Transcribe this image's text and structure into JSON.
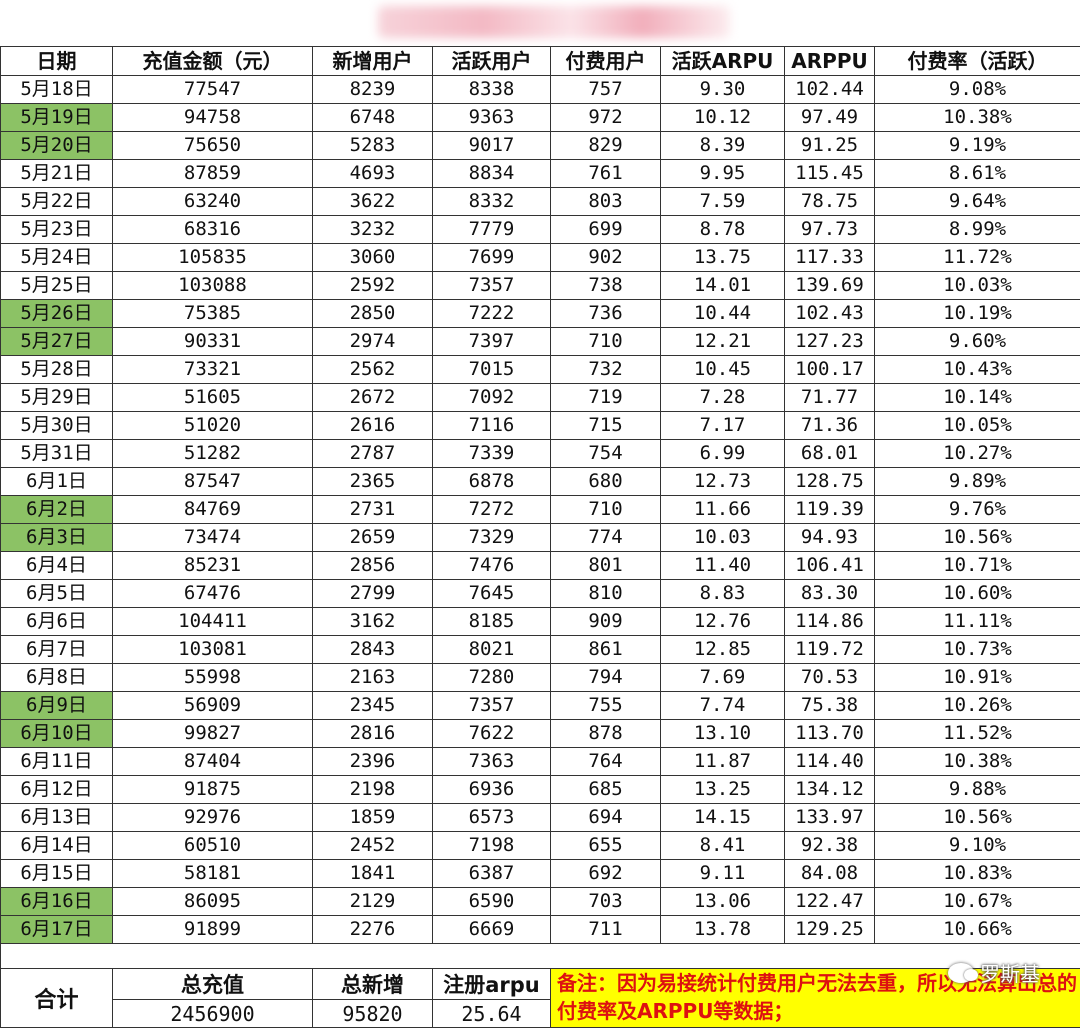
{
  "headers": [
    "日期",
    "充值金额（元）",
    "新增用户",
    "活跃用户",
    "付费用户",
    "活跃ARPU",
    "ARPPU",
    "付费率（活跃）"
  ],
  "rows": [
    {
      "date": "5月18日",
      "recharge": "77547",
      "new_users": "8239",
      "active": "8338",
      "paying": "757",
      "arpu": "9.30",
      "arppu": "102.44",
      "rate": "9.08%",
      "highlight": false
    },
    {
      "date": "5月19日",
      "recharge": "94758",
      "new_users": "6748",
      "active": "9363",
      "paying": "972",
      "arpu": "10.12",
      "arppu": "97.49",
      "rate": "10.38%",
      "highlight": true
    },
    {
      "date": "5月20日",
      "recharge": "75650",
      "new_users": "5283",
      "active": "9017",
      "paying": "829",
      "arpu": "8.39",
      "arppu": "91.25",
      "rate": "9.19%",
      "highlight": true
    },
    {
      "date": "5月21日",
      "recharge": "87859",
      "new_users": "4693",
      "active": "8834",
      "paying": "761",
      "arpu": "9.95",
      "arppu": "115.45",
      "rate": "8.61%",
      "highlight": false
    },
    {
      "date": "5月22日",
      "recharge": "63240",
      "new_users": "3622",
      "active": "8332",
      "paying": "803",
      "arpu": "7.59",
      "arppu": "78.75",
      "rate": "9.64%",
      "highlight": false
    },
    {
      "date": "5月23日",
      "recharge": "68316",
      "new_users": "3232",
      "active": "7779",
      "paying": "699",
      "arpu": "8.78",
      "arppu": "97.73",
      "rate": "8.99%",
      "highlight": false
    },
    {
      "date": "5月24日",
      "recharge": "105835",
      "new_users": "3060",
      "active": "7699",
      "paying": "902",
      "arpu": "13.75",
      "arppu": "117.33",
      "rate": "11.72%",
      "highlight": false
    },
    {
      "date": "5月25日",
      "recharge": "103088",
      "new_users": "2592",
      "active": "7357",
      "paying": "738",
      "arpu": "14.01",
      "arppu": "139.69",
      "rate": "10.03%",
      "highlight": false
    },
    {
      "date": "5月26日",
      "recharge": "75385",
      "new_users": "2850",
      "active": "7222",
      "paying": "736",
      "arpu": "10.44",
      "arppu": "102.43",
      "rate": "10.19%",
      "highlight": true
    },
    {
      "date": "5月27日",
      "recharge": "90331",
      "new_users": "2974",
      "active": "7397",
      "paying": "710",
      "arpu": "12.21",
      "arppu": "127.23",
      "rate": "9.60%",
      "highlight": true
    },
    {
      "date": "5月28日",
      "recharge": "73321",
      "new_users": "2562",
      "active": "7015",
      "paying": "732",
      "arpu": "10.45",
      "arppu": "100.17",
      "rate": "10.43%",
      "highlight": false
    },
    {
      "date": "5月29日",
      "recharge": "51605",
      "new_users": "2672",
      "active": "7092",
      "paying": "719",
      "arpu": "7.28",
      "arppu": "71.77",
      "rate": "10.14%",
      "highlight": false
    },
    {
      "date": "5月30日",
      "recharge": "51020",
      "new_users": "2616",
      "active": "7116",
      "paying": "715",
      "arpu": "7.17",
      "arppu": "71.36",
      "rate": "10.05%",
      "highlight": false
    },
    {
      "date": "5月31日",
      "recharge": "51282",
      "new_users": "2787",
      "active": "7339",
      "paying": "754",
      "arpu": "6.99",
      "arppu": "68.01",
      "rate": "10.27%",
      "highlight": false
    },
    {
      "date": "6月1日",
      "recharge": "87547",
      "new_users": "2365",
      "active": "6878",
      "paying": "680",
      "arpu": "12.73",
      "arppu": "128.75",
      "rate": "9.89%",
      "highlight": false
    },
    {
      "date": "6月2日",
      "recharge": "84769",
      "new_users": "2731",
      "active": "7272",
      "paying": "710",
      "arpu": "11.66",
      "arppu": "119.39",
      "rate": "9.76%",
      "highlight": true
    },
    {
      "date": "6月3日",
      "recharge": "73474",
      "new_users": "2659",
      "active": "7329",
      "paying": "774",
      "arpu": "10.03",
      "arppu": "94.93",
      "rate": "10.56%",
      "highlight": true
    },
    {
      "date": "6月4日",
      "recharge": "85231",
      "new_users": "2856",
      "active": "7476",
      "paying": "801",
      "arpu": "11.40",
      "arppu": "106.41",
      "rate": "10.71%",
      "highlight": false
    },
    {
      "date": "6月5日",
      "recharge": "67476",
      "new_users": "2799",
      "active": "7645",
      "paying": "810",
      "arpu": "8.83",
      "arppu": "83.30",
      "rate": "10.60%",
      "highlight": false
    },
    {
      "date": "6月6日",
      "recharge": "104411",
      "new_users": "3162",
      "active": "8185",
      "paying": "909",
      "arpu": "12.76",
      "arppu": "114.86",
      "rate": "11.11%",
      "highlight": false
    },
    {
      "date": "6月7日",
      "recharge": "103081",
      "new_users": "2843",
      "active": "8021",
      "paying": "861",
      "arpu": "12.85",
      "arppu": "119.72",
      "rate": "10.73%",
      "highlight": false
    },
    {
      "date": "6月8日",
      "recharge": "55998",
      "new_users": "2163",
      "active": "7280",
      "paying": "794",
      "arpu": "7.69",
      "arppu": "70.53",
      "rate": "10.91%",
      "highlight": false
    },
    {
      "date": "6月9日",
      "recharge": "56909",
      "new_users": "2345",
      "active": "7357",
      "paying": "755",
      "arpu": "7.74",
      "arppu": "75.38",
      "rate": "10.26%",
      "highlight": true
    },
    {
      "date": "6月10日",
      "recharge": "99827",
      "new_users": "2816",
      "active": "7622",
      "paying": "878",
      "arpu": "13.10",
      "arppu": "113.70",
      "rate": "11.52%",
      "highlight": true
    },
    {
      "date": "6月11日",
      "recharge": "87404",
      "new_users": "2396",
      "active": "7363",
      "paying": "764",
      "arpu": "11.87",
      "arppu": "114.40",
      "rate": "10.38%",
      "highlight": false
    },
    {
      "date": "6月12日",
      "recharge": "91875",
      "new_users": "2198",
      "active": "6936",
      "paying": "685",
      "arpu": "13.25",
      "arppu": "134.12",
      "rate": "9.88%",
      "highlight": false
    },
    {
      "date": "6月13日",
      "recharge": "92976",
      "new_users": "1859",
      "active": "6573",
      "paying": "694",
      "arpu": "14.15",
      "arppu": "133.97",
      "rate": "10.56%",
      "highlight": false
    },
    {
      "date": "6月14日",
      "recharge": "60510",
      "new_users": "2452",
      "active": "7198",
      "paying": "655",
      "arpu": "8.41",
      "arppu": "92.38",
      "rate": "9.10%",
      "highlight": false
    },
    {
      "date": "6月15日",
      "recharge": "58181",
      "new_users": "1841",
      "active": "6387",
      "paying": "692",
      "arpu": "9.11",
      "arppu": "84.08",
      "rate": "10.83%",
      "highlight": false
    },
    {
      "date": "6月16日",
      "recharge": "86095",
      "new_users": "2129",
      "active": "6590",
      "paying": "703",
      "arpu": "13.06",
      "arppu": "122.47",
      "rate": "10.67%",
      "highlight": true
    },
    {
      "date": "6月17日",
      "recharge": "91899",
      "new_users": "2276",
      "active": "6669",
      "paying": "711",
      "arpu": "13.78",
      "arppu": "129.25",
      "rate": "10.66%",
      "highlight": true
    }
  ],
  "totals": {
    "label": "合计",
    "total_recharge_label": "总充值",
    "total_recharge": "2456900",
    "total_new_label": "总新增",
    "total_new": "95820",
    "reg_arpu_label": "注册arpu",
    "reg_arpu": "25.64",
    "note": "备注：因为易接统计付费用户无法去重，所以无法算出总的付费率及ARPPU等数据；"
  },
  "colors": {
    "highlight": "#8cc265",
    "note_bg": "#ffff00",
    "note_text": "#dd1111"
  },
  "watermark": {
    "text": "罗斯基",
    "icon": "wechat-icon"
  }
}
